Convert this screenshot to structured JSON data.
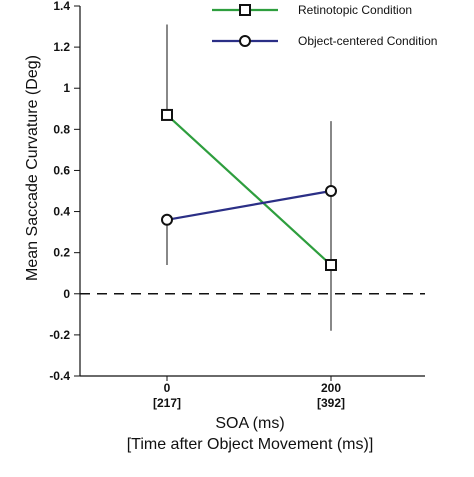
{
  "chart_data": {
    "type": "line",
    "title": "",
    "ylabel": "Mean Saccade Curvature (Deg)",
    "xlabel": "SOA (ms)",
    "xlabel2": "[Time after Object Movement (ms)]",
    "ylim": [
      -0.4,
      1.4
    ],
    "yticks": [
      "-0.4",
      "-0.2",
      "0",
      "0.2",
      "0.4",
      "0.6",
      "0.8",
      "1",
      "1.2",
      "1.4"
    ],
    "categories": [
      "0",
      "200"
    ],
    "categories_sub": [
      "[217]",
      "[392]"
    ],
    "reference_line": 0,
    "legend_position": "top-right",
    "series": [
      {
        "name": "Retinotopic Condition",
        "values": [
          0.87,
          0.14
        ],
        "error_upper": [
          1.31,
          0.84
        ],
        "error_lower": [
          null,
          -0.18
        ],
        "color": "#2e9e3e",
        "marker": "square"
      },
      {
        "name": "Object-centered Condition",
        "values": [
          0.36,
          0.5
        ],
        "error_upper": [
          null,
          null
        ],
        "error_lower": [
          0.14,
          null
        ],
        "color": "#2b2f86",
        "marker": "circle"
      }
    ]
  }
}
